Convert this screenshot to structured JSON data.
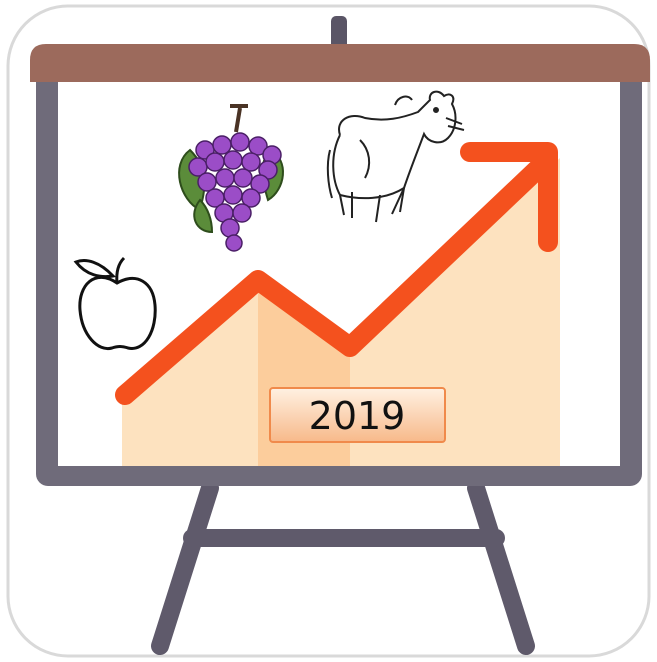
{
  "label": "2019"
}
